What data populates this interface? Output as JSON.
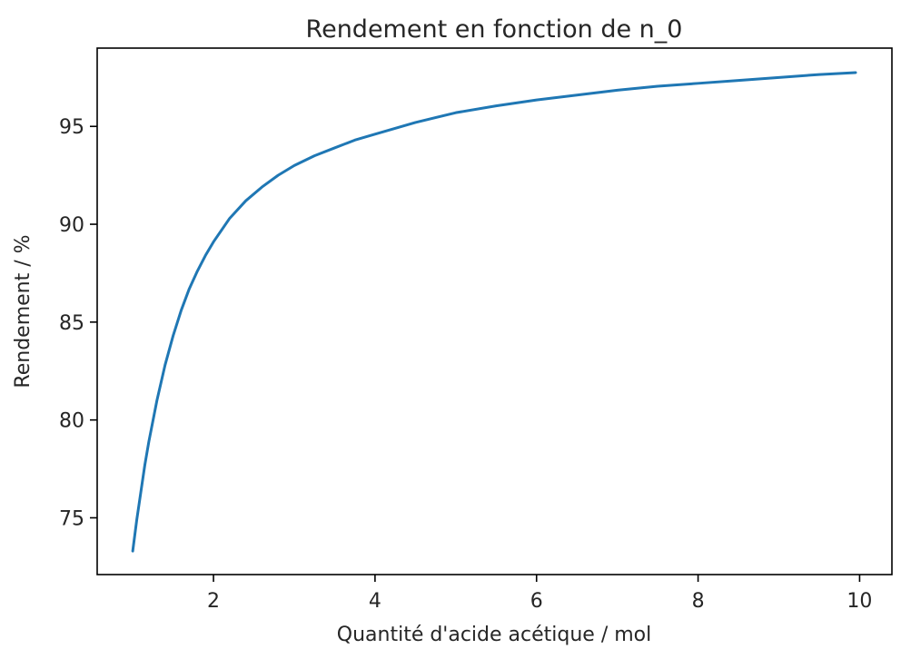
{
  "chart_data": {
    "type": "line",
    "title": "Rendement en fonction de n_0",
    "xlabel": "Quantité d'acide acétique / mol",
    "ylabel": "Rendement / %",
    "xlim": [
      0.56,
      10.4
    ],
    "ylim": [
      72.1,
      99.0
    ],
    "x_ticks": [
      2,
      4,
      6,
      8,
      10
    ],
    "x_tick_labels": [
      "2",
      "4",
      "6",
      "8",
      "10"
    ],
    "y_ticks": [
      75,
      80,
      85,
      90,
      95
    ],
    "y_tick_labels": [
      "75",
      "80",
      "85",
      "90",
      "95"
    ],
    "grid": false,
    "legend": "none",
    "series": [
      {
        "color": "#1f77b4",
        "x": [
          1.0,
          1.05,
          1.1,
          1.15,
          1.2,
          1.3,
          1.4,
          1.5,
          1.6,
          1.7,
          1.8,
          1.9,
          2.0,
          2.2,
          2.4,
          2.6,
          2.8,
          3.0,
          3.25,
          3.5,
          3.75,
          4.0,
          4.5,
          5.0,
          5.5,
          6.0,
          6.5,
          7.0,
          7.5,
          8.0,
          8.5,
          9.0,
          9.5,
          9.95
        ],
        "y": [
          73.3,
          74.9,
          76.3,
          77.7,
          78.9,
          81.0,
          82.8,
          84.3,
          85.6,
          86.7,
          87.6,
          88.4,
          89.1,
          90.3,
          91.2,
          91.9,
          92.5,
          93.0,
          93.5,
          93.9,
          94.3,
          94.6,
          95.2,
          95.7,
          96.05,
          96.35,
          96.6,
          96.85,
          97.05,
          97.2,
          97.35,
          97.5,
          97.65,
          97.75
        ]
      }
    ]
  }
}
